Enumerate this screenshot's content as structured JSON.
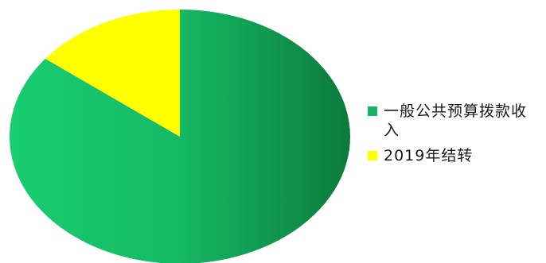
{
  "chart_data": {
    "type": "pie",
    "title": "",
    "slices": [
      {
        "label": "一般公共预算拨款收入",
        "value": 85.5,
        "color": "#1ec86e"
      },
      {
        "label": "2019年结转",
        "value": 14.5,
        "color": "#ffff00"
      }
    ],
    "legend_position": "right",
    "data_labels": false
  }
}
